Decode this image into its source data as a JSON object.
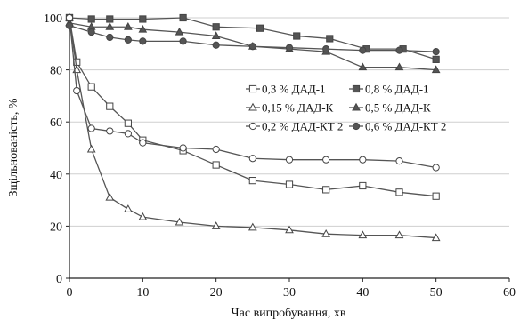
{
  "chart_data": {
    "type": "line",
    "xlabel": "Час випробування, хв",
    "ylabel": "Зщільнованість, %",
    "xlim": [
      0,
      60
    ],
    "ylim": [
      0,
      100
    ],
    "xticks": [
      0,
      10,
      20,
      30,
      40,
      50,
      60
    ],
    "yticks": [
      0,
      20,
      40,
      60,
      80,
      100
    ],
    "grid": "horizontal",
    "legend_position": "right-center",
    "series": [
      {
        "name": "0,3 % ДАД-1",
        "marker": "square-open",
        "color": "#555555",
        "x": [
          0,
          1,
          3,
          5.5,
          8,
          10,
          15.5,
          20,
          25,
          30,
          35,
          40,
          45,
          50
        ],
        "y": [
          100,
          83,
          73.5,
          66,
          59.5,
          53,
          49,
          43.5,
          37.5,
          36,
          34,
          35.5,
          33,
          31.5
        ]
      },
      {
        "name": "0,8 % ДАД-1",
        "marker": "square-filled",
        "color": "#555555",
        "x": [
          0,
          3,
          5.5,
          10,
          15.5,
          20,
          26,
          31,
          35.5,
          40.5,
          45.5,
          50
        ],
        "y": [
          100,
          99.5,
          99.5,
          99.5,
          100,
          96.5,
          96,
          93,
          92,
          88,
          88,
          84
        ]
      },
      {
        "name": "0,15 % ДАД-К",
        "marker": "triangle-open",
        "color": "#555555",
        "x": [
          0,
          1,
          3,
          5.5,
          8,
          10,
          15,
          20,
          25,
          30,
          35,
          40,
          45,
          50
        ],
        "y": [
          100,
          80,
          49.5,
          31,
          26.5,
          23.5,
          21.5,
          20,
          19.5,
          18.5,
          17,
          16.5,
          16.5,
          15.5
        ]
      },
      {
        "name": "0,5 % ДАД-К",
        "marker": "triangle-filled",
        "color": "#555555",
        "x": [
          0,
          3,
          5.5,
          8,
          10,
          15,
          20,
          25,
          30,
          35,
          40,
          45,
          50
        ],
        "y": [
          98,
          96.5,
          96.5,
          96.5,
          95.5,
          94.5,
          93,
          89,
          88,
          87,
          81,
          81,
          80
        ]
      },
      {
        "name": "0,2 % ДАД-КТ 2",
        "marker": "circle-open",
        "color": "#555555",
        "x": [
          0,
          1,
          3,
          5.5,
          8,
          10,
          15.5,
          20,
          25,
          30,
          35,
          40,
          45,
          50
        ],
        "y": [
          100,
          72,
          57.5,
          56.5,
          55.5,
          52,
          50,
          49.5,
          46,
          45.5,
          45.5,
          45.5,
          45,
          42.5
        ]
      },
      {
        "name": "0,6 % ДАД-КТ 2",
        "marker": "circle-filled",
        "color": "#555555",
        "x": [
          0,
          3,
          5.5,
          8,
          10,
          15.5,
          20,
          25,
          30,
          35,
          40,
          45,
          50
        ],
        "y": [
          97,
          94.5,
          92.5,
          91.5,
          91,
          91,
          89.5,
          89,
          88.5,
          88,
          87.5,
          87.5,
          87
        ]
      }
    ]
  }
}
